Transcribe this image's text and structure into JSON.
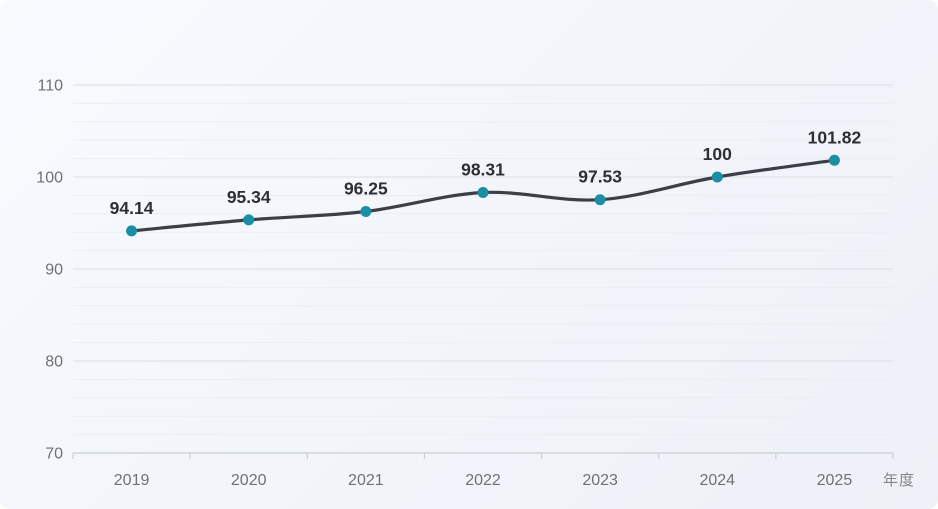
{
  "chart_data": {
    "type": "line",
    "categories": [
      "2019",
      "2020",
      "2021",
      "2022",
      "2023",
      "2024",
      "2025"
    ],
    "values": [
      94.14,
      95.34,
      96.25,
      98.31,
      97.53,
      100,
      101.82
    ],
    "data_labels": [
      "94.14",
      "95.34",
      "96.25",
      "98.31",
      "97.53",
      "100",
      "101.82"
    ],
    "title": "",
    "xlabel": "年度",
    "ylabel": "",
    "ylim": [
      70,
      110
    ],
    "yticks": [
      70,
      80,
      90,
      100,
      110
    ],
    "minor_tick_interval": 2,
    "smooth": true,
    "grid": true,
    "legend": "none",
    "colors": {
      "line": "#3c3f45",
      "marker": "#1b8ea6",
      "data_label": "#2d2f33",
      "axis_line": "#c9ced3",
      "grid_major": "#dadee3",
      "grid_minor": "#eaedf1",
      "tick_label": "#6e7175",
      "unit_label": "#84878b"
    }
  }
}
